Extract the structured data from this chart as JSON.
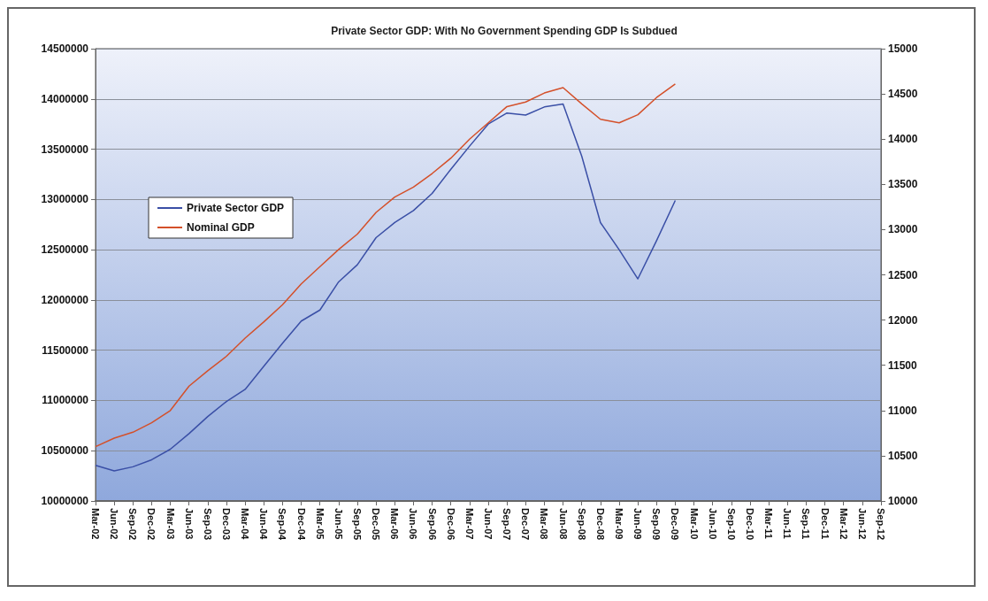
{
  "chart_data": {
    "type": "line",
    "title": "Private Sector GDP: With No Government Spending GDP Is Subdued",
    "categories": [
      "Mar-02",
      "Jun-02",
      "Sep-02",
      "Dec-02",
      "Mar-03",
      "Jun-03",
      "Sep-03",
      "Dec-03",
      "Mar-04",
      "Jun-04",
      "Sep-04",
      "Dec-04",
      "Mar-05",
      "Jun-05",
      "Sep-05",
      "Dec-05",
      "Mar-06",
      "Jun-06",
      "Sep-06",
      "Dec-06",
      "Mar-07",
      "Jun-07",
      "Sep-07",
      "Dec-07",
      "Mar-08",
      "Jun-08",
      "Sep-08",
      "Dec-08",
      "Mar-09",
      "Jun-09",
      "Sep-09",
      "Dec-09",
      "Mar-10",
      "Jun-10",
      "Sep-10",
      "Dec-10",
      "Mar-11",
      "Jun-11",
      "Sep-11",
      "Dec-11",
      "Mar-12",
      "Jun-12",
      "Sep-12"
    ],
    "series": [
      {
        "name": "Private Sector GDP",
        "color": "#3a4fa6",
        "values": [
          10355000,
          10300000,
          10340000,
          10410000,
          10515000,
          10670000,
          10840000,
          10990000,
          11110000,
          11340000,
          11570000,
          11790000,
          11900000,
          12180000,
          12350000,
          12620000,
          12770000,
          12890000,
          13060000,
          13300000,
          13530000,
          13750000,
          13860000,
          13840000,
          13920000,
          13950000,
          13430000,
          12770000,
          12500000,
          12210000,
          12590000,
          12990000,
          null,
          null,
          null,
          null,
          null,
          null,
          null,
          null,
          null,
          null,
          null
        ]
      },
      {
        "name": "Nominal GDP",
        "color": "#d4502a",
        "axis": "y2",
        "values": [
          10600,
          10695,
          10760,
          10865,
          11000,
          11270,
          11440,
          11600,
          11800,
          11980,
          12170,
          12400,
          12590,
          12780,
          12950,
          13190,
          13360,
          13470,
          13620,
          13790,
          14000,
          14180,
          14360,
          14410,
          14510,
          14570,
          14390,
          14220,
          14180,
          14270,
          14460,
          14610,
          null,
          null,
          null,
          null,
          null,
          null,
          null,
          null,
          null,
          null,
          null
        ]
      }
    ],
    "ylim": [
      10000000,
      14500000
    ],
    "yticks": [
      10000000,
      10500000,
      11000000,
      11500000,
      12000000,
      12500000,
      13000000,
      13500000,
      14000000,
      14500000
    ],
    "y2lim": [
      10000,
      15000
    ],
    "y2ticks": [
      10000,
      10500,
      11000,
      11500,
      12000,
      12500,
      13000,
      13500,
      14000,
      14500,
      15000
    ],
    "grid": "y",
    "legend": "left",
    "marker": "none",
    "line_style": "solid"
  }
}
